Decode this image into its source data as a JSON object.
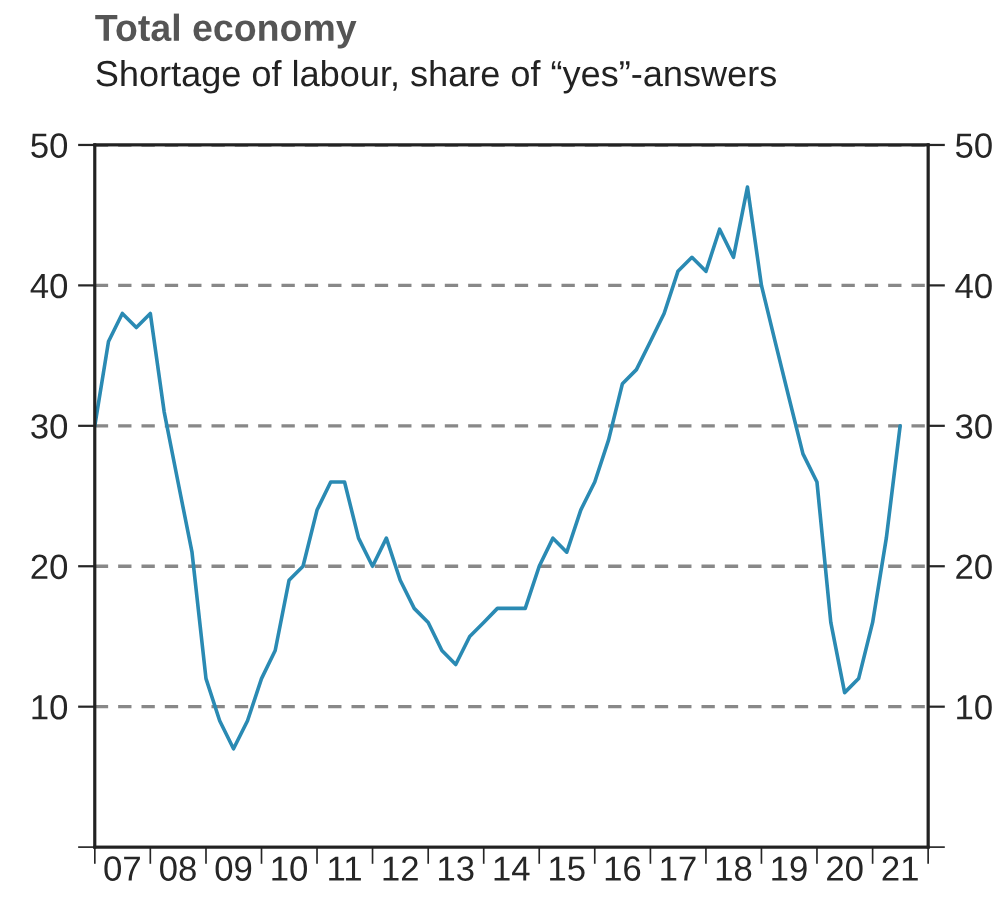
{
  "chart_data": {
    "type": "line",
    "title": "Total economy",
    "subtitle": "Shortage of labour, share of “yes”-answers",
    "x": [
      "2007-01",
      "2007-04",
      "2007-07",
      "2007-10",
      "2008-01",
      "2008-04",
      "2008-07",
      "2008-10",
      "2009-01",
      "2009-04",
      "2009-07",
      "2009-10",
      "2010-01",
      "2010-04",
      "2010-07",
      "2010-10",
      "2011-01",
      "2011-04",
      "2011-07",
      "2011-10",
      "2012-01",
      "2012-04",
      "2012-07",
      "2012-10",
      "2013-01",
      "2013-04",
      "2013-07",
      "2013-10",
      "2014-01",
      "2014-04",
      "2014-07",
      "2014-10",
      "2015-01",
      "2015-04",
      "2015-07",
      "2015-10",
      "2016-01",
      "2016-04",
      "2016-07",
      "2016-10",
      "2017-01",
      "2017-04",
      "2017-07",
      "2017-10",
      "2018-01",
      "2018-04",
      "2018-07",
      "2018-10",
      "2019-01",
      "2019-04",
      "2019-07",
      "2019-10",
      "2020-01",
      "2020-04",
      "2020-07",
      "2020-10",
      "2021-01",
      "2021-04",
      "2021-07"
    ],
    "series": [
      {
        "color": "#2a8ab3",
        "values": [
          30,
          36,
          38,
          37,
          38,
          31,
          26,
          21,
          12,
          9,
          7,
          9,
          12,
          14,
          19,
          20,
          24,
          26,
          26,
          22,
          20,
          22,
          19,
          17,
          16,
          14,
          13,
          15,
          16,
          17,
          17,
          17,
          20,
          22,
          21,
          24,
          26,
          29,
          33,
          34,
          36,
          38,
          41,
          42,
          41,
          44,
          42,
          47,
          40,
          36,
          32,
          28,
          26,
          16,
          11,
          12,
          16,
          22,
          30
        ]
      }
    ],
    "xlim": [
      "2007-01",
      "2022-01"
    ],
    "xticks": [
      {
        "value": "2007-01",
        "label": null
      },
      {
        "value": "2007-07",
        "label": "07"
      },
      {
        "value": "2008-01",
        "label": null
      },
      {
        "value": "2008-07",
        "label": "08"
      },
      {
        "value": "2009-01",
        "label": null
      },
      {
        "value": "2009-07",
        "label": "09"
      },
      {
        "value": "2010-01",
        "label": null
      },
      {
        "value": "2010-07",
        "label": "10"
      },
      {
        "value": "2011-01",
        "label": null
      },
      {
        "value": "2011-07",
        "label": "11"
      },
      {
        "value": "2012-01",
        "label": null
      },
      {
        "value": "2012-07",
        "label": "12"
      },
      {
        "value": "2013-01",
        "label": null
      },
      {
        "value": "2013-07",
        "label": "13"
      },
      {
        "value": "2014-01",
        "label": null
      },
      {
        "value": "2014-07",
        "label": "14"
      },
      {
        "value": "2015-01",
        "label": null
      },
      {
        "value": "2015-07",
        "label": "15"
      },
      {
        "value": "2016-01",
        "label": null
      },
      {
        "value": "2016-07",
        "label": "16"
      },
      {
        "value": "2017-01",
        "label": null
      },
      {
        "value": "2017-07",
        "label": "17"
      },
      {
        "value": "2018-01",
        "label": null
      },
      {
        "value": "2018-07",
        "label": "18"
      },
      {
        "value": "2019-01",
        "label": null
      },
      {
        "value": "2019-07",
        "label": "19"
      },
      {
        "value": "2020-01",
        "label": null
      },
      {
        "value": "2020-07",
        "label": "20"
      },
      {
        "value": "2021-01",
        "label": null
      },
      {
        "value": "2021-07",
        "label": "21"
      },
      {
        "value": "2022-01",
        "label": null
      }
    ],
    "ylim": [
      0,
      50
    ],
    "yticks": [
      {
        "value": 0,
        "label": null
      },
      10,
      20,
      30,
      40,
      50
    ],
    "y2lim": [
      0,
      50
    ],
    "y2ticks": [
      {
        "value": 0,
        "label": null
      },
      10,
      20,
      30,
      40,
      50
    ],
    "grid": "y",
    "line_style": "solid",
    "marker": "none"
  }
}
